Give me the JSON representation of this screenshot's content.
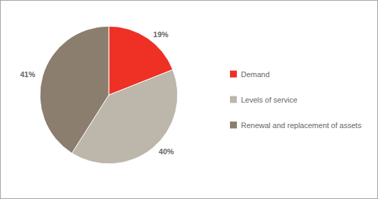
{
  "chart_data": {
    "type": "pie",
    "categories": [
      "Demand",
      "Levels of service",
      "Renewal and replacement of assets"
    ],
    "values": [
      19,
      40,
      41
    ],
    "value_labels": [
      "19%",
      "40%",
      "41%"
    ],
    "colors": [
      "#ee3124",
      "#bdb6ab",
      "#8b7e6e"
    ],
    "data_labels": true,
    "legend": "right"
  }
}
